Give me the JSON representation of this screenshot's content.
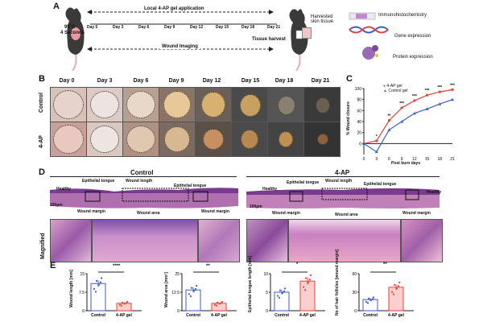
{
  "panelA": {
    "label": "A",
    "temp": "95°C",
    "duration": "4 Seconds",
    "gel_arrow": "Local 4-AP gel application",
    "days": [
      "Day 0",
      "Day 3",
      "Day 6",
      "Day 9",
      "Day 12",
      "Day 15",
      "Day 18",
      "Day 21"
    ],
    "imaging_arrow": "Wound Imaging",
    "tissue_harvest": "Tissue harvest",
    "harvested": "Harvested skin tissue",
    "ihc": "Immunohistochemistry",
    "gene": "Gene expression",
    "protein": "Protein expression"
  },
  "panelB": {
    "label": "B",
    "days": [
      "Day 0",
      "Day 3",
      "Day 6",
      "Day 9",
      "Day 12",
      "Day 15",
      "Day 18",
      "Day 21"
    ],
    "rows": [
      "Control",
      "4-AP"
    ]
  },
  "panelC": {
    "label": "C",
    "legend": [
      "4-AP gel",
      "Control gel"
    ],
    "ylabel": "% Wound closure",
    "xlabel": "Post burn days",
    "xticks": [
      "0",
      "3",
      "6",
      "9",
      "12",
      "15",
      "18",
      "21"
    ],
    "yticks": [
      "0",
      "20",
      "40",
      "60",
      "80",
      "100"
    ],
    "sig": [
      "*",
      "**",
      "***",
      "***",
      "***",
      "***",
      "***"
    ]
  },
  "panelD": {
    "label": "D",
    "control_title": "Control",
    "ap_title": "4-AP",
    "healthy": "Healthy",
    "epithelial_tongue": "Epithelial tongue",
    "wound_length": "Wound length",
    "wound_margin": "Wound margin",
    "wound_area": "Wound area",
    "scale": "100µm",
    "magnified": "Magnified"
  },
  "panelE": {
    "label": "E",
    "categories": [
      "Control",
      "4-AP gel"
    ],
    "plots": [
      {
        "ylabel": "Wound length [mm]",
        "sig": "****"
      },
      {
        "ylabel": "Wound area [mm²]",
        "sig": "**"
      },
      {
        "ylabel": "Epithelial tongue length [mm]",
        "sig": "*"
      },
      {
        "ylabel": "No of hair follicles [wound margin]",
        "sig": "**"
      }
    ]
  },
  "chart_data": [
    {
      "type": "line",
      "title": "",
      "xlabel": "Post burn days",
      "ylabel": "% Wound closure",
      "x": [
        0,
        3,
        6,
        9,
        12,
        15,
        18,
        21
      ],
      "ylim": [
        -20,
        100
      ],
      "series": [
        {
          "name": "4-AP gel",
          "color": "#e8433a",
          "values": [
            0,
            5,
            42,
            65,
            78,
            88,
            94,
            98
          ]
        },
        {
          "name": "Control gel",
          "color": "#3c5ec8",
          "values": [
            0,
            -15,
            25,
            40,
            55,
            63,
            72,
            80
          ]
        }
      ]
    },
    {
      "type": "bar",
      "categories": [
        "Control",
        "4-AP gel"
      ],
      "ylabel": "Wound length [mm]",
      "values": [
        11,
        3
      ],
      "ylim": [
        0,
        15
      ]
    },
    {
      "type": "bar",
      "categories": [
        "Control",
        "4-AP gel"
      ],
      "ylabel": "Wound area [mm²]",
      "values": [
        14,
        5
      ],
      "ylim": [
        0,
        25
      ]
    },
    {
      "type": "bar",
      "categories": [
        "Control",
        "4-AP gel"
      ],
      "ylabel": "Epithelial tongue length [mm]",
      "values": [
        5,
        8
      ],
      "ylim": [
        0,
        10
      ]
    },
    {
      "type": "bar",
      "categories": [
        "Control",
        "4-AP gel"
      ],
      "ylabel": "No of hair follicles [wound margin]",
      "values": [
        18,
        38
      ],
      "ylim": [
        0,
        60
      ]
    }
  ]
}
